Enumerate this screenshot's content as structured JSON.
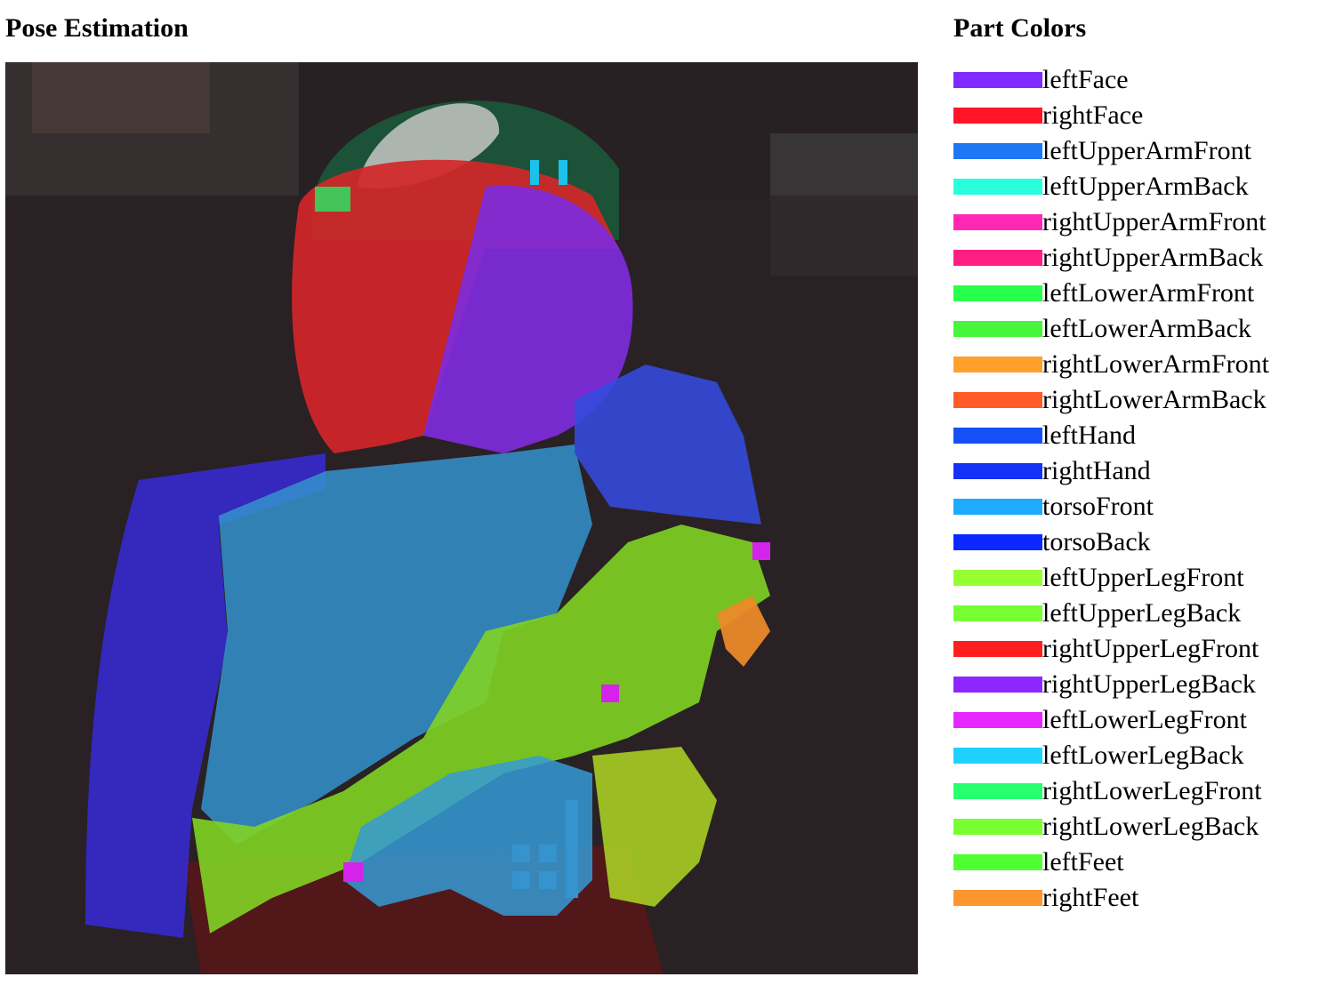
{
  "left_panel": {
    "title": "Pose Estimation"
  },
  "right_panel": {
    "title": "Part Colors",
    "parts": [
      {
        "label": "leftFace",
        "color": "#7f2aff"
      },
      {
        "label": "rightFace",
        "color": "#ff1428"
      },
      {
        "label": "leftUpperArmFront",
        "color": "#1e78f5"
      },
      {
        "label": "leftUpperArmBack",
        "color": "#28ffdc"
      },
      {
        "label": "rightUpperArmFront",
        "color": "#ff28b4"
      },
      {
        "label": "rightUpperArmBack",
        "color": "#ff1e82"
      },
      {
        "label": "leftLowerArmFront",
        "color": "#28ff4b"
      },
      {
        "label": "leftLowerArmBack",
        "color": "#46f53c"
      },
      {
        "label": "rightLowerArmFront",
        "color": "#ffa02d"
      },
      {
        "label": "rightLowerArmBack",
        "color": "#ff5a28"
      },
      {
        "label": "leftHand",
        "color": "#1450f5"
      },
      {
        "label": "rightHand",
        "color": "#1432f5"
      },
      {
        "label": "torsoFront",
        "color": "#1eaaff"
      },
      {
        "label": "torsoBack",
        "color": "#0a28ff"
      },
      {
        "label": "leftUpperLegFront",
        "color": "#96ff32"
      },
      {
        "label": "leftUpperLegBack",
        "color": "#78ff32"
      },
      {
        "label": "rightUpperLegFront",
        "color": "#ff1e1e"
      },
      {
        "label": "rightUpperLegBack",
        "color": "#8c28ff"
      },
      {
        "label": "leftLowerLegFront",
        "color": "#e628ff"
      },
      {
        "label": "leftLowerLegBack",
        "color": "#1ed2ff"
      },
      {
        "label": "rightLowerLegFront",
        "color": "#28ff6e"
      },
      {
        "label": "rightLowerLegBack",
        "color": "#78ff32"
      },
      {
        "label": "leftFeet",
        "color": "#50ff32"
      },
      {
        "label": "rightFeet",
        "color": "#ff962d"
      }
    ]
  }
}
